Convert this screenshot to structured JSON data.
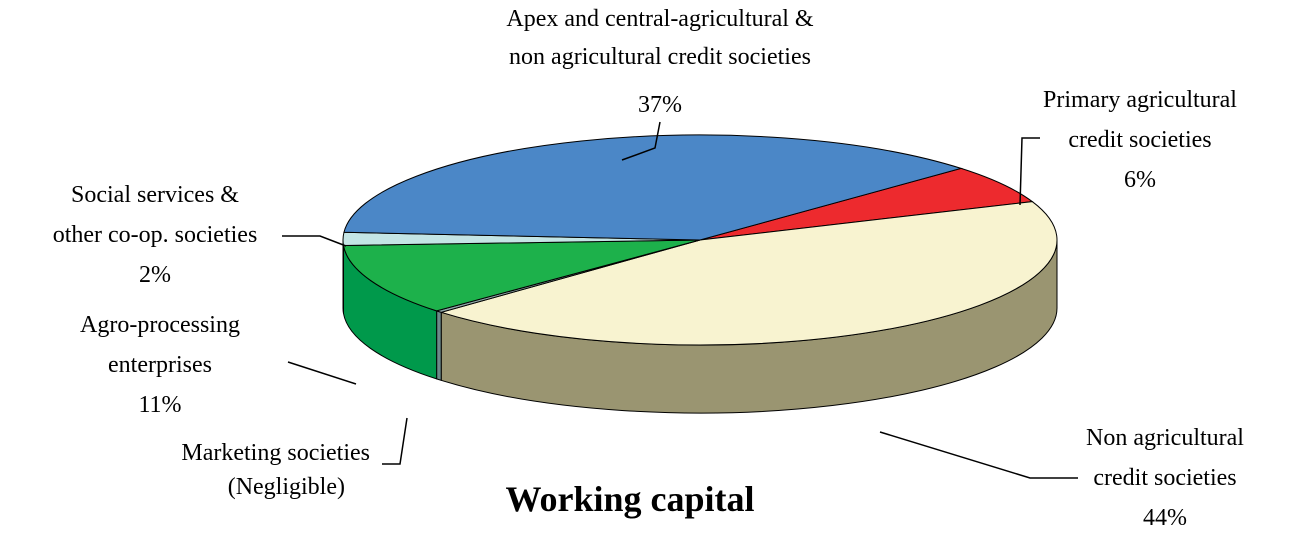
{
  "chart_data": {
    "type": "pie3d",
    "title": "Working capital",
    "categories": [
      "Primary agricultural\ncredit societies",
      "Non agricultural\ncredit societies",
      "Marketing societies",
      "Agro-processing\nenterprises",
      "Social services &\nother co-op. societies",
      "Apex and central-agricultural &\nnon agricultural credit societies"
    ],
    "values": [
      6,
      44,
      0.3,
      11,
      2,
      37
    ],
    "value_labels": [
      "6%",
      "44%",
      "(Negligible)",
      "11%",
      "2%",
      "37%"
    ],
    "colors": [
      "#ed2a2e",
      "#f8f3d0",
      "#8fa7a7",
      "#1db14b",
      "#c4e5e5",
      "#4b87c7"
    ],
    "side_colors": [
      "#b51c20",
      "#9a9571",
      "#6d8a8a",
      "#00994b",
      "#97c2c2",
      "#2f679f"
    ]
  }
}
